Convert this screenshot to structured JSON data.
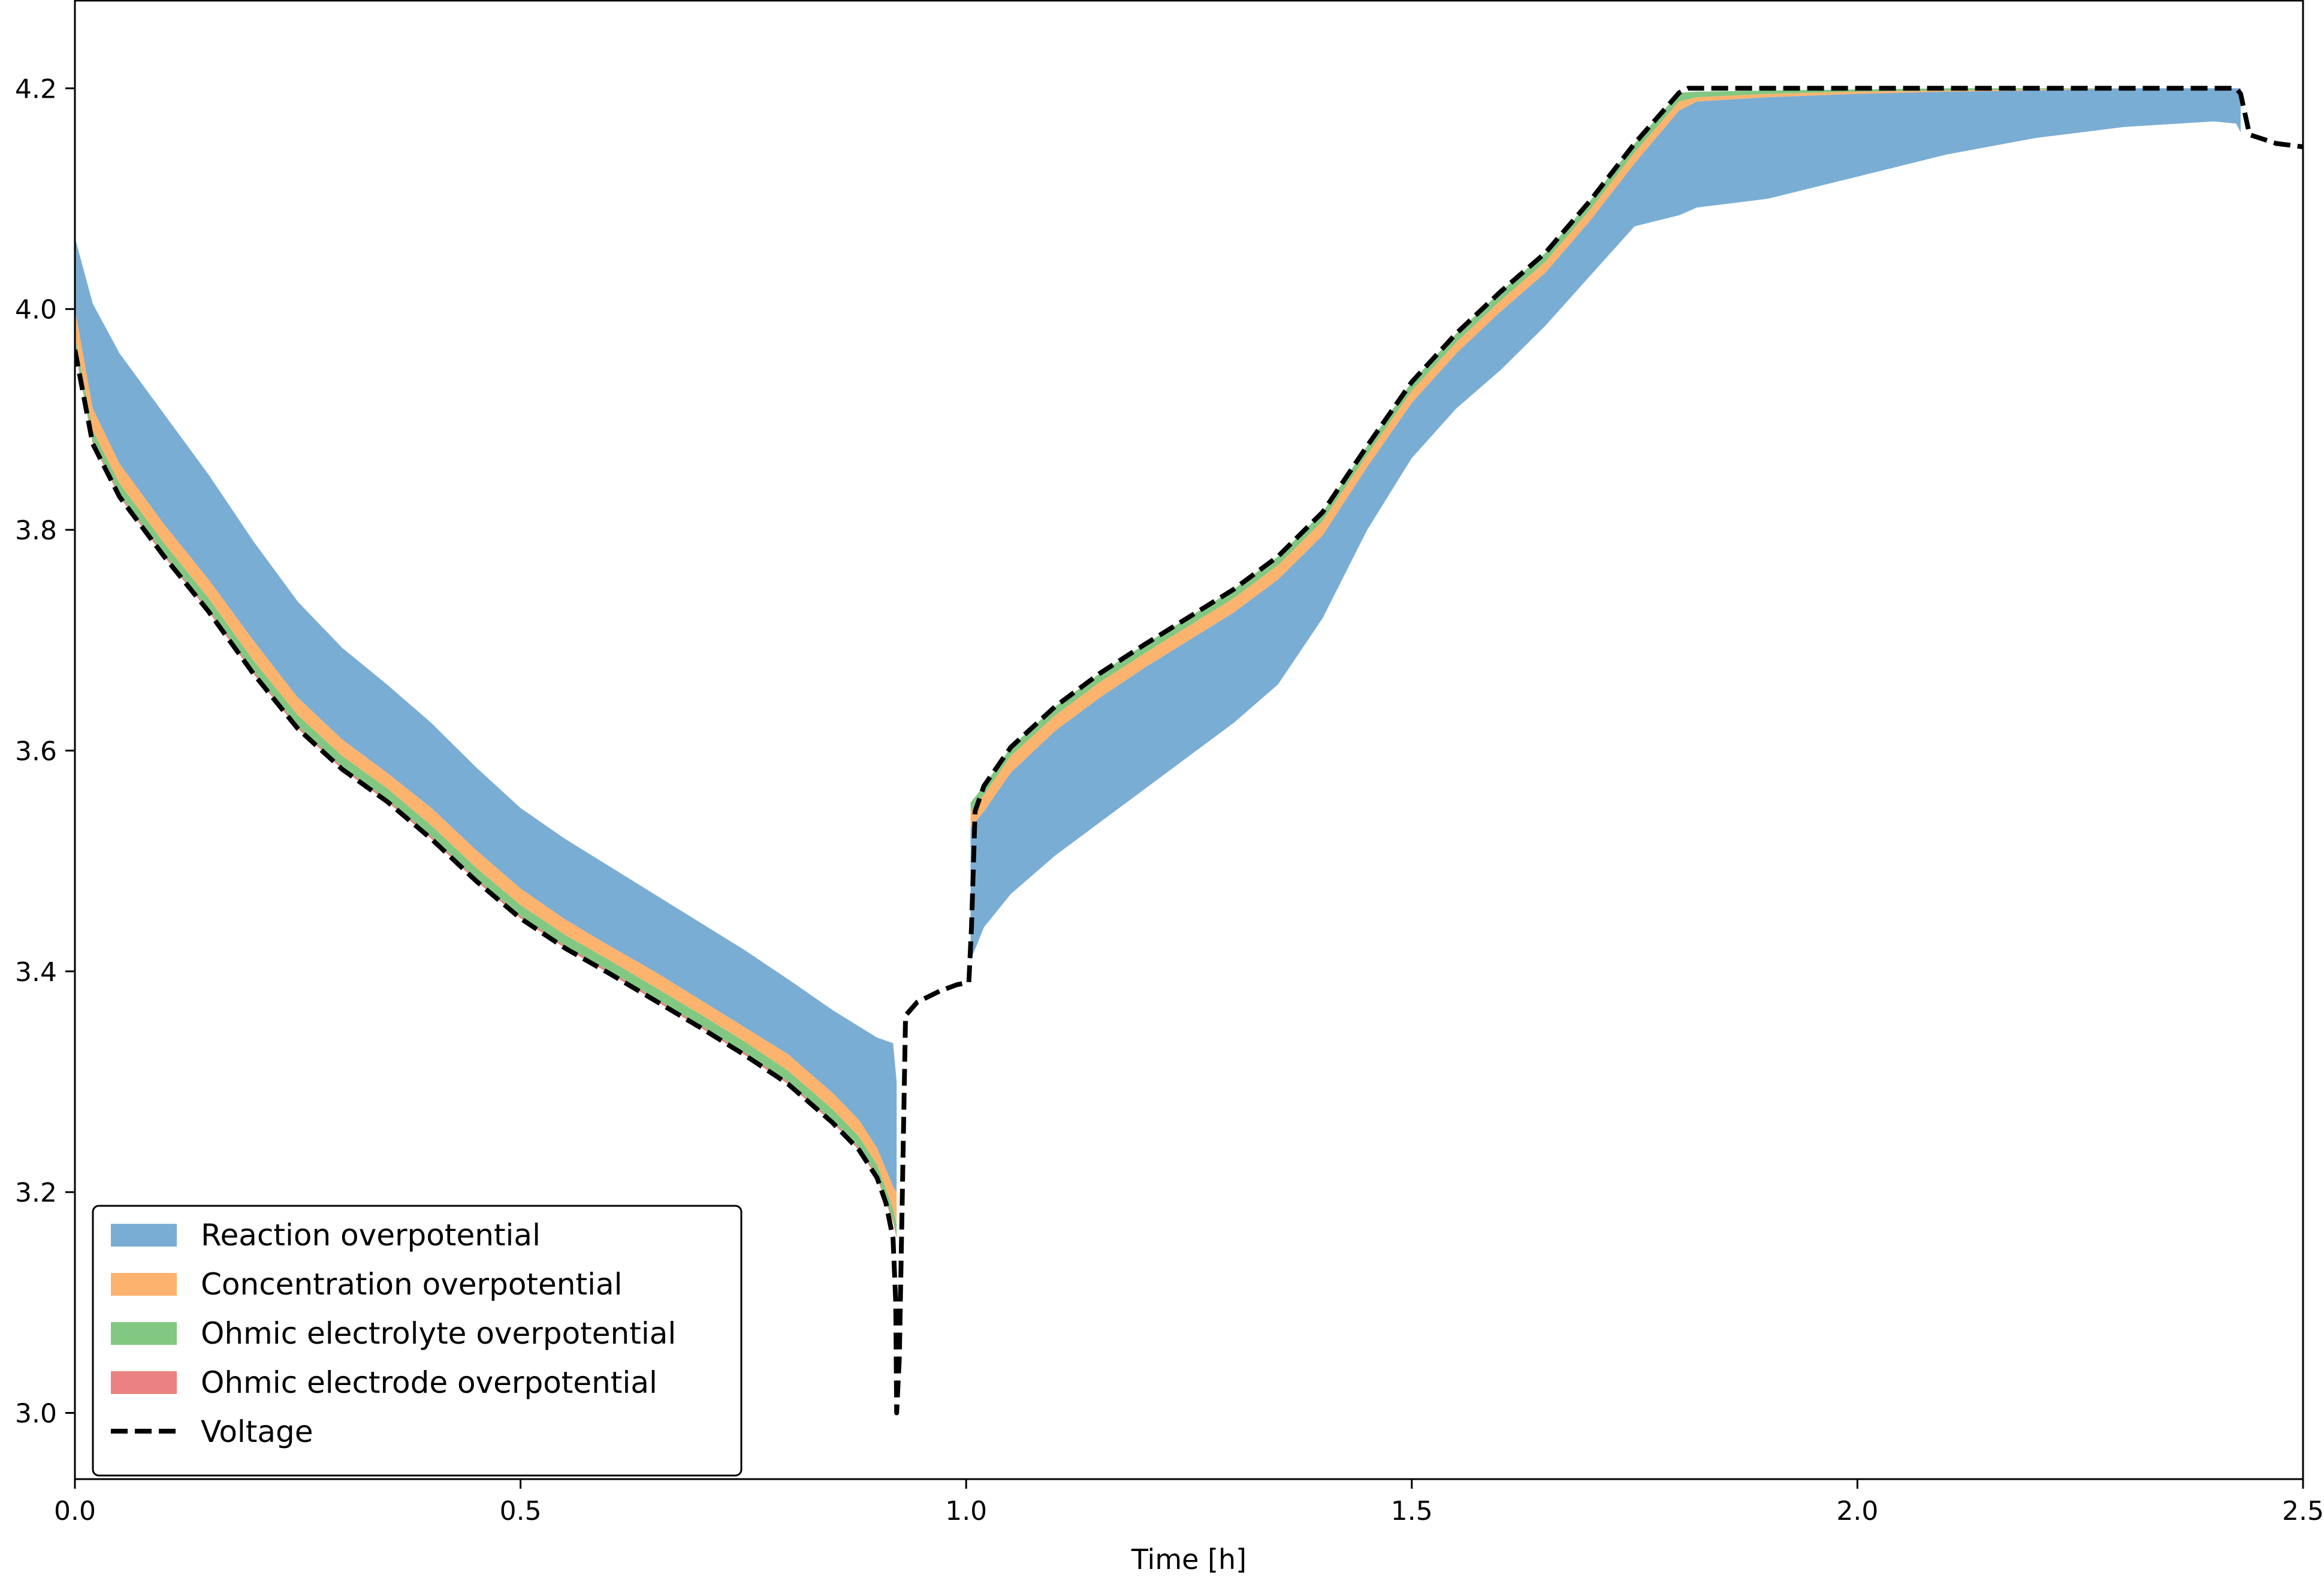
{
  "chart_data": {
    "type": "area",
    "title": "",
    "xlabel": "Time [h]",
    "ylabel": "",
    "xlim": [
      0,
      2.5
    ],
    "ylim": [
      2.94,
      4.28
    ],
    "xticks": [
      0.0,
      0.5,
      1.0,
      1.5,
      2.0,
      2.5
    ],
    "xtick_labels": [
      "0.0",
      "0.5",
      "1.0",
      "1.5",
      "2.0",
      "2.5"
    ],
    "yticks": [
      3.0,
      3.2,
      3.4,
      3.6,
      3.8,
      4.0,
      4.2
    ],
    "ytick_labels": [
      "3.0",
      "3.2",
      "3.4",
      "3.6",
      "3.8",
      "4.0",
      "4.2"
    ],
    "grid": false,
    "legend_position": "lower-left",
    "colors": {
      "reaction": "#7aadd3",
      "concentration": "#fcb36e",
      "electrolyte": "#82c882",
      "electrode": "#e98280",
      "voltage": "#000000"
    },
    "series": [
      {
        "name": "Reaction overpotential",
        "kind": "band",
        "x": [
          0.0,
          0.02,
          0.05,
          0.1,
          0.15,
          0.2,
          0.25,
          0.3,
          0.35,
          0.4,
          0.45,
          0.5,
          0.55,
          0.6,
          0.65,
          0.7,
          0.75,
          0.8,
          0.85,
          0.88,
          0.9,
          0.918,
          0.922
        ],
        "upper": [
          4.065,
          4.005,
          3.96,
          3.905,
          3.85,
          3.79,
          3.735,
          3.693,
          3.66,
          3.625,
          3.585,
          3.548,
          3.52,
          3.495,
          3.47,
          3.445,
          3.42,
          3.393,
          3.365,
          3.35,
          3.34,
          3.335,
          3.3
        ],
        "lower": [
          4.0,
          3.91,
          3.86,
          3.805,
          3.755,
          3.7,
          3.648,
          3.61,
          3.58,
          3.548,
          3.51,
          3.475,
          3.447,
          3.423,
          3.4,
          3.375,
          3.35,
          3.325,
          3.29,
          3.265,
          3.24,
          3.205,
          3.2
        ]
      },
      {
        "name": "Reaction overpotential",
        "kind": "band",
        "x": [
          1.005,
          1.02,
          1.05,
          1.1,
          1.15,
          1.2,
          1.25,
          1.3,
          1.35,
          1.4,
          1.45,
          1.5,
          1.55,
          1.6,
          1.65,
          1.7,
          1.75,
          1.8,
          1.82,
          1.9,
          2.0,
          2.1,
          2.2,
          2.3,
          2.4,
          2.425,
          2.43
        ],
        "upper": [
          3.53,
          3.545,
          3.58,
          3.618,
          3.648,
          3.675,
          3.7,
          3.725,
          3.755,
          3.795,
          3.857,
          3.915,
          3.96,
          3.998,
          4.033,
          4.08,
          4.132,
          4.18,
          4.188,
          4.192,
          4.195,
          4.197,
          4.198,
          4.2,
          4.2,
          4.2,
          4.2
        ],
        "lower": [
          3.41,
          3.44,
          3.47,
          3.505,
          3.535,
          3.565,
          3.595,
          3.625,
          3.66,
          3.72,
          3.8,
          3.865,
          3.91,
          3.945,
          3.985,
          4.03,
          4.075,
          4.085,
          4.092,
          4.1,
          4.12,
          4.14,
          4.155,
          4.165,
          4.17,
          4.168,
          4.16
        ]
      },
      {
        "name": "Concentration overpotential",
        "kind": "band",
        "x": [
          0.0,
          0.02,
          0.05,
          0.1,
          0.15,
          0.2,
          0.25,
          0.3,
          0.35,
          0.4,
          0.45,
          0.5,
          0.55,
          0.6,
          0.65,
          0.7,
          0.75,
          0.8,
          0.85,
          0.88,
          0.9,
          0.918,
          0.922
        ],
        "upper": [
          4.0,
          3.91,
          3.86,
          3.805,
          3.755,
          3.7,
          3.648,
          3.61,
          3.58,
          3.548,
          3.51,
          3.475,
          3.447,
          3.423,
          3.4,
          3.375,
          3.35,
          3.325,
          3.29,
          3.265,
          3.24,
          3.205,
          3.2
        ],
        "lower": [
          3.975,
          3.89,
          3.842,
          3.788,
          3.738,
          3.682,
          3.632,
          3.595,
          3.566,
          3.532,
          3.494,
          3.46,
          3.433,
          3.41,
          3.386,
          3.362,
          3.337,
          3.31,
          3.275,
          3.25,
          3.225,
          3.185,
          3.17
        ]
      },
      {
        "name": "Concentration overpotential",
        "kind": "band",
        "x": [
          1.005,
          1.02,
          1.05,
          1.1,
          1.15,
          1.2,
          1.25,
          1.3,
          1.35,
          1.4,
          1.45,
          1.5,
          1.55,
          1.6,
          1.65,
          1.7,
          1.75,
          1.8,
          1.82,
          1.9,
          2.0,
          2.1,
          2.2,
          2.3,
          2.4,
          2.425,
          2.43
        ],
        "upper": [
          3.545,
          3.56,
          3.595,
          3.632,
          3.662,
          3.688,
          3.713,
          3.738,
          3.768,
          3.808,
          3.868,
          3.926,
          3.97,
          4.008,
          4.043,
          4.09,
          4.142,
          4.188,
          4.192,
          4.195,
          4.197,
          4.198,
          4.199,
          4.2,
          4.2,
          4.2,
          4.2
        ],
        "lower": [
          3.53,
          3.545,
          3.58,
          3.618,
          3.648,
          3.675,
          3.7,
          3.725,
          3.755,
          3.795,
          3.857,
          3.915,
          3.96,
          3.998,
          4.033,
          4.08,
          4.132,
          4.18,
          4.188,
          4.192,
          4.195,
          4.197,
          4.198,
          4.2,
          4.2,
          4.2,
          4.2
        ]
      },
      {
        "name": "Ohmic electrolyte overpotential",
        "kind": "band",
        "x": [
          0.0,
          0.02,
          0.05,
          0.1,
          0.15,
          0.2,
          0.25,
          0.3,
          0.35,
          0.4,
          0.45,
          0.5,
          0.55,
          0.6,
          0.65,
          0.7,
          0.75,
          0.8,
          0.85,
          0.88,
          0.9,
          0.918,
          0.922
        ],
        "upper": [
          3.975,
          3.89,
          3.842,
          3.788,
          3.738,
          3.682,
          3.632,
          3.595,
          3.566,
          3.532,
          3.494,
          3.46,
          3.433,
          3.41,
          3.386,
          3.362,
          3.337,
          3.31,
          3.275,
          3.25,
          3.225,
          3.185,
          3.17
        ],
        "lower": [
          3.965,
          3.88,
          3.832,
          3.778,
          3.728,
          3.672,
          3.622,
          3.585,
          3.556,
          3.522,
          3.484,
          3.45,
          3.423,
          3.4,
          3.376,
          3.352,
          3.327,
          3.3,
          3.265,
          3.24,
          3.215,
          3.175,
          3.16
        ]
      },
      {
        "name": "Ohmic electrolyte overpotential",
        "kind": "band",
        "x": [
          1.005,
          1.02,
          1.05,
          1.1,
          1.15,
          1.2,
          1.25,
          1.3,
          1.35,
          1.4,
          1.45,
          1.5,
          1.55,
          1.6,
          1.65,
          1.7,
          1.75,
          1.8,
          1.82,
          1.9,
          2.0,
          2.1,
          2.2,
          2.3,
          2.4,
          2.425,
          2.43
        ],
        "upper": [
          3.553,
          3.568,
          3.603,
          3.64,
          3.67,
          3.696,
          3.721,
          3.746,
          3.776,
          3.816,
          3.876,
          3.934,
          3.978,
          4.016,
          4.051,
          4.098,
          4.15,
          4.196,
          4.197,
          4.198,
          4.199,
          4.2,
          4.2,
          4.2,
          4.2,
          4.2,
          4.2
        ],
        "lower": [
          3.545,
          3.56,
          3.595,
          3.632,
          3.662,
          3.688,
          3.713,
          3.738,
          3.768,
          3.808,
          3.868,
          3.926,
          3.97,
          4.008,
          4.043,
          4.09,
          4.142,
          4.188,
          4.192,
          4.195,
          4.197,
          4.198,
          4.199,
          4.2,
          4.2,
          4.2,
          4.2
        ]
      },
      {
        "name": "Ohmic electrode overpotential",
        "kind": "band",
        "x": [
          0.0,
          0.02,
          0.05,
          0.1,
          0.15,
          0.2,
          0.25,
          0.3,
          0.35,
          0.4,
          0.45,
          0.5,
          0.55,
          0.6,
          0.65,
          0.7,
          0.75,
          0.8,
          0.85,
          0.88,
          0.9,
          0.918,
          0.922
        ],
        "upper": [
          3.965,
          3.88,
          3.832,
          3.778,
          3.728,
          3.672,
          3.622,
          3.585,
          3.556,
          3.522,
          3.484,
          3.45,
          3.423,
          3.4,
          3.376,
          3.352,
          3.327,
          3.3,
          3.265,
          3.24,
          3.215,
          3.175,
          3.16
        ],
        "lower": [
          3.963,
          3.878,
          3.83,
          3.776,
          3.726,
          3.67,
          3.62,
          3.583,
          3.554,
          3.52,
          3.482,
          3.448,
          3.421,
          3.398,
          3.374,
          3.35,
          3.325,
          3.298,
          3.263,
          3.238,
          3.213,
          3.173,
          3.158
        ]
      },
      {
        "name": "Voltage",
        "kind": "line",
        "x": [
          0.0,
          0.02,
          0.05,
          0.1,
          0.15,
          0.2,
          0.25,
          0.3,
          0.35,
          0.4,
          0.45,
          0.5,
          0.55,
          0.6,
          0.65,
          0.7,
          0.75,
          0.8,
          0.85,
          0.88,
          0.9,
          0.91,
          0.918,
          0.921,
          0.922,
          0.925,
          0.928,
          0.932,
          0.945,
          0.97,
          0.99,
          1.003,
          1.006,
          1.01,
          1.02,
          1.05,
          1.1,
          1.15,
          1.2,
          1.25,
          1.3,
          1.35,
          1.4,
          1.45,
          1.5,
          1.55,
          1.6,
          1.65,
          1.7,
          1.75,
          1.8,
          1.81,
          1.9,
          2.0,
          2.1,
          2.2,
          2.3,
          2.4,
          2.425,
          2.43,
          2.44,
          2.47,
          2.5
        ],
        "y": [
          3.963,
          3.878,
          3.83,
          3.776,
          3.726,
          3.67,
          3.62,
          3.583,
          3.554,
          3.52,
          3.482,
          3.448,
          3.421,
          3.398,
          3.374,
          3.35,
          3.325,
          3.298,
          3.263,
          3.238,
          3.213,
          3.19,
          3.158,
          3.1,
          3.0,
          3.05,
          3.18,
          3.36,
          3.372,
          3.382,
          3.388,
          3.39,
          3.44,
          3.545,
          3.568,
          3.603,
          3.64,
          3.67,
          3.696,
          3.721,
          3.746,
          3.776,
          3.816,
          3.876,
          3.934,
          3.978,
          4.016,
          4.051,
          4.098,
          4.15,
          4.196,
          4.2,
          4.2,
          4.2,
          4.2,
          4.2,
          4.2,
          4.2,
          4.2,
          4.195,
          4.158,
          4.15,
          4.147
        ]
      }
    ],
    "legend": [
      {
        "label": "Reaction overpotential",
        "color": "#7aadd3",
        "style": "patch"
      },
      {
        "label": "Concentration overpotential",
        "color": "#fcb36e",
        "style": "patch"
      },
      {
        "label": "Ohmic electrolyte overpotential",
        "color": "#82c882",
        "style": "patch"
      },
      {
        "label": "Ohmic electrode overpotential",
        "color": "#e98280",
        "style": "patch"
      },
      {
        "label": "Voltage",
        "color": "#000000",
        "style": "dashed-line"
      }
    ]
  }
}
